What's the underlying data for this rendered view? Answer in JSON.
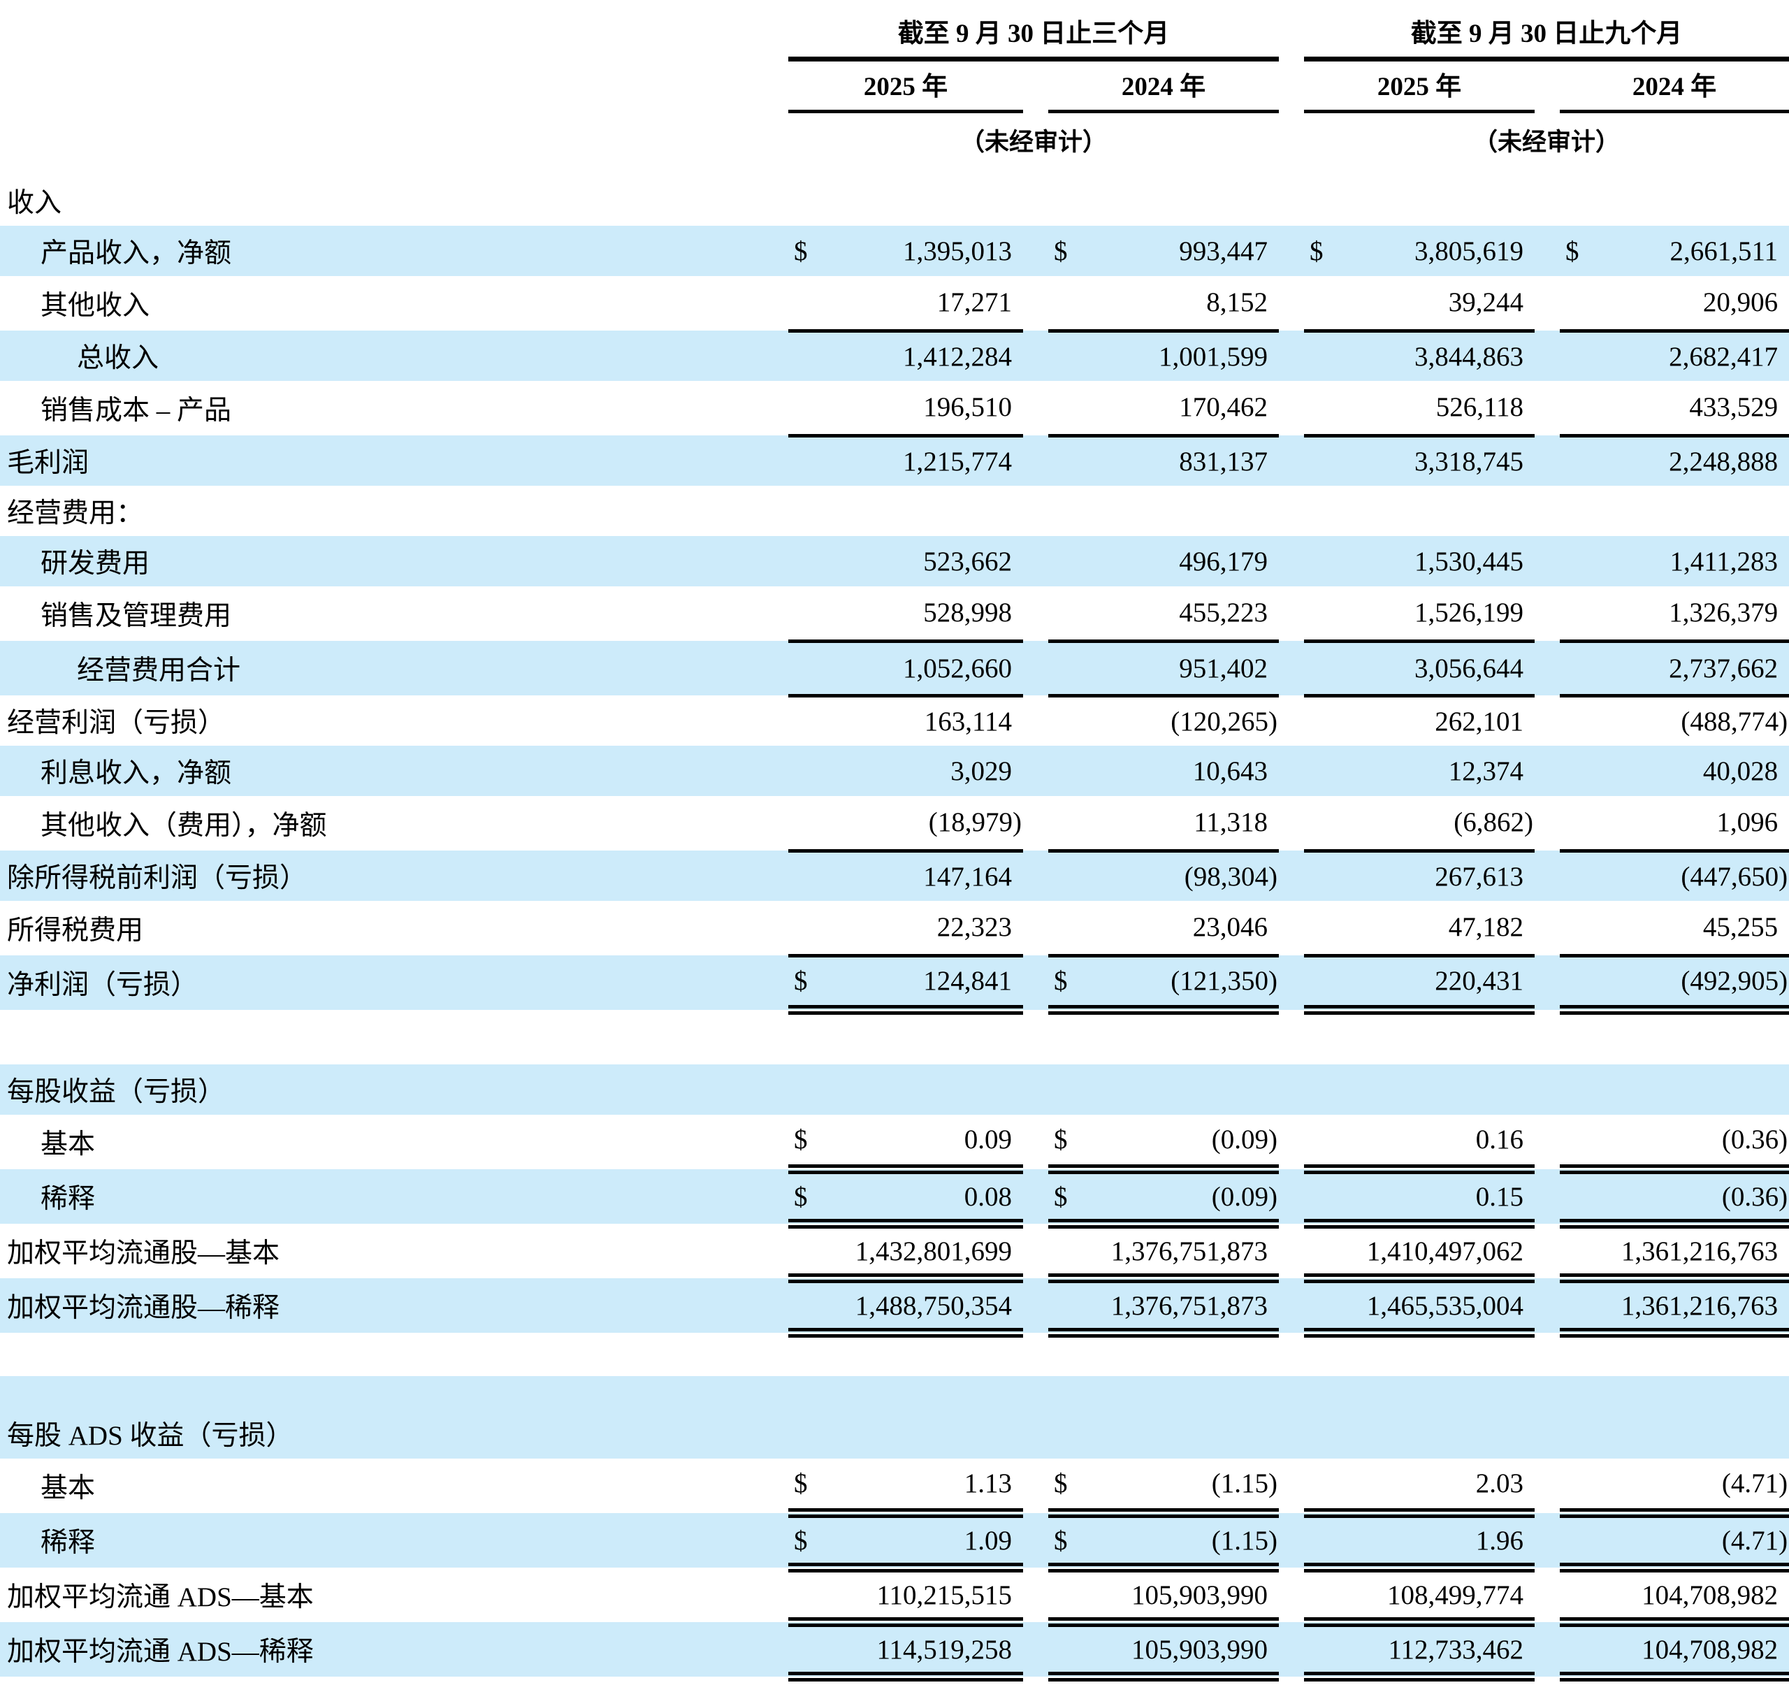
{
  "page": {
    "background": "#ffffff",
    "row_highlight": "#CDEBFA",
    "text_color": "#000000"
  },
  "table": {
    "groups": [
      {
        "title": "截至 9 月 30 日止三个月",
        "years": [
          "2025 年",
          "2024 年"
        ],
        "unaudited": "（未经审计）"
      },
      {
        "title": "截至 9 月 30 日止九个月",
        "years": [
          "2025 年",
          "2024 年"
        ],
        "unaudited": "（未经审计）"
      }
    ],
    "rows": [
      {
        "type": "data",
        "label": "收入",
        "indent": 0,
        "shaded": false,
        "dollars": [
          "",
          "",
          "",
          ""
        ],
        "values": [
          "",
          "",
          "",
          ""
        ],
        "rule": "none"
      },
      {
        "type": "data",
        "label": "产品收入，净额",
        "indent": 1,
        "shaded": true,
        "dollars": [
          "$",
          "$",
          "$",
          "$"
        ],
        "values": [
          "1,395,013",
          "993,447",
          "3,805,619",
          "2,661,511"
        ],
        "rule": "none"
      },
      {
        "type": "data",
        "label": "其他收入",
        "indent": 1,
        "shaded": false,
        "dollars": [
          "",
          "",
          "",
          ""
        ],
        "values": [
          "17,271",
          "8,152",
          "39,244",
          "20,906"
        ],
        "rule": "single"
      },
      {
        "type": "data",
        "label": "总收入",
        "indent": 2,
        "shaded": true,
        "dollars": [
          "",
          "",
          "",
          ""
        ],
        "values": [
          "1,412,284",
          "1,001,599",
          "3,844,863",
          "2,682,417"
        ],
        "rule": "none"
      },
      {
        "type": "data",
        "label": "销售成本 – 产品",
        "indent": 1,
        "shaded": false,
        "dollars": [
          "",
          "",
          "",
          ""
        ],
        "values": [
          "196,510",
          "170,462",
          "526,118",
          "433,529"
        ],
        "rule": "single"
      },
      {
        "type": "data",
        "label": "毛利润",
        "indent": 0,
        "shaded": true,
        "dollars": [
          "",
          "",
          "",
          ""
        ],
        "values": [
          "1,215,774",
          "831,137",
          "3,318,745",
          "2,248,888"
        ],
        "rule": "none"
      },
      {
        "type": "data",
        "label": "经营费用：",
        "indent": 0,
        "shaded": false,
        "dollars": [
          "",
          "",
          "",
          ""
        ],
        "values": [
          "",
          "",
          "",
          ""
        ],
        "rule": "none"
      },
      {
        "type": "data",
        "label": "研发费用",
        "indent": 1,
        "shaded": true,
        "dollars": [
          "",
          "",
          "",
          ""
        ],
        "values": [
          "523,662",
          "496,179",
          "1,530,445",
          "1,411,283"
        ],
        "rule": "none"
      },
      {
        "type": "data",
        "label": "销售及管理费用",
        "indent": 1,
        "shaded": false,
        "dollars": [
          "",
          "",
          "",
          ""
        ],
        "values": [
          "528,998",
          "455,223",
          "1,526,199",
          "1,326,379"
        ],
        "rule": "single"
      },
      {
        "type": "data",
        "label": "经营费用合计",
        "indent": 2,
        "shaded": true,
        "dollars": [
          "",
          "",
          "",
          ""
        ],
        "values": [
          "1,052,660",
          "951,402",
          "3,056,644",
          "2,737,662"
        ],
        "rule": "single"
      },
      {
        "type": "data",
        "label": "经营利润（亏损）",
        "indent": 0,
        "shaded": false,
        "dollars": [
          "",
          "",
          "",
          ""
        ],
        "values": [
          "163,114",
          "(120,265)",
          "262,101",
          "(488,774)"
        ],
        "rule": "none"
      },
      {
        "type": "data",
        "label": "利息收入，净额",
        "indent": 1,
        "shaded": true,
        "dollars": [
          "",
          "",
          "",
          ""
        ],
        "values": [
          "3,029",
          "10,643",
          "12,374",
          "40,028"
        ],
        "rule": "none"
      },
      {
        "type": "data",
        "label": "其他收入（费用），净额",
        "indent": 1,
        "shaded": false,
        "dollars": [
          "",
          "",
          "",
          ""
        ],
        "values": [
          "(18,979)",
          "11,318",
          "(6,862)",
          "1,096"
        ],
        "rule": "single"
      },
      {
        "type": "data",
        "label": "除所得税前利润（亏损）",
        "indent": 0,
        "shaded": true,
        "dollars": [
          "",
          "",
          "",
          ""
        ],
        "values": [
          "147,164",
          "(98,304)",
          "267,613",
          "(447,650)"
        ],
        "rule": "none"
      },
      {
        "type": "data",
        "label": "所得税费用",
        "indent": 0,
        "shaded": false,
        "dollars": [
          "",
          "",
          "",
          ""
        ],
        "values": [
          "22,323",
          "23,046",
          "47,182",
          "45,255"
        ],
        "rule": "single"
      },
      {
        "type": "data",
        "label": "净利润（亏损）",
        "indent": 0,
        "shaded": true,
        "dollars": [
          "$",
          "$",
          "",
          ""
        ],
        "values": [
          "124,841",
          "(121,350)",
          "220,431",
          "(492,905)"
        ],
        "rule": "double"
      },
      {
        "type": "spacer",
        "shaded": false,
        "h": 78
      },
      {
        "type": "data",
        "label": "每股收益（亏损）",
        "indent": 0,
        "shaded": true,
        "dollars": [
          "",
          "",
          "",
          ""
        ],
        "values": [
          "",
          "",
          "",
          ""
        ],
        "rule": "none"
      },
      {
        "type": "data",
        "label": "基本",
        "indent": 1,
        "shaded": false,
        "dollars": [
          "$",
          "$",
          "",
          ""
        ],
        "values": [
          "0.09",
          "(0.09)",
          "0.16",
          "(0.36)"
        ],
        "rule": "double"
      },
      {
        "type": "data",
        "label": "稀释",
        "indent": 1,
        "shaded": true,
        "dollars": [
          "$",
          "$",
          "",
          ""
        ],
        "values": [
          "0.08",
          "(0.09)",
          "0.15",
          "(0.36)"
        ],
        "rule": "double"
      },
      {
        "type": "data",
        "label": "加权平均流通股—基本",
        "indent": 0,
        "shaded": false,
        "dollars": [
          "",
          "",
          "",
          ""
        ],
        "values": [
          "1,432,801,699",
          "1,376,751,873",
          "1,410,497,062",
          "1,361,216,763"
        ],
        "rule": "double"
      },
      {
        "type": "data",
        "label": "加权平均流通股—稀释",
        "indent": 0,
        "shaded": true,
        "dollars": [
          "",
          "",
          "",
          ""
        ],
        "values": [
          "1,488,750,354",
          "1,376,751,873",
          "1,465,535,004",
          "1,361,216,763"
        ],
        "rule": "double"
      },
      {
        "type": "spacer",
        "shaded": false,
        "h": 62
      },
      {
        "type": "spacer",
        "shaded": true,
        "h": 46
      },
      {
        "type": "data",
        "label": "每股 ADS 收益（亏损）",
        "indent": 0,
        "shaded": true,
        "dollars": [
          "",
          "",
          "",
          ""
        ],
        "values": [
          "",
          "",
          "",
          ""
        ],
        "rule": "none"
      },
      {
        "type": "data",
        "label": "基本",
        "indent": 1,
        "shaded": false,
        "dollars": [
          "$",
          "$",
          "",
          ""
        ],
        "values": [
          "1.13",
          "(1.15)",
          "2.03",
          "(4.71)"
        ],
        "rule": "double"
      },
      {
        "type": "data",
        "label": "稀释",
        "indent": 1,
        "shaded": true,
        "dollars": [
          "$",
          "$",
          "",
          ""
        ],
        "values": [
          "1.09",
          "(1.15)",
          "1.96",
          "(4.71)"
        ],
        "rule": "double"
      },
      {
        "type": "data",
        "label": "加权平均流通 ADS—基本",
        "indent": 0,
        "shaded": false,
        "dollars": [
          "",
          "",
          "",
          ""
        ],
        "values": [
          "110,215,515",
          "105,903,990",
          "108,499,774",
          "104,708,982"
        ],
        "rule": "double"
      },
      {
        "type": "data",
        "label": "加权平均流通 ADS—稀释",
        "indent": 0,
        "shaded": true,
        "dollars": [
          "",
          "",
          "",
          ""
        ],
        "values": [
          "114,519,258",
          "105,903,990",
          "112,733,462",
          "104,708,982"
        ],
        "rule": "double"
      }
    ]
  }
}
